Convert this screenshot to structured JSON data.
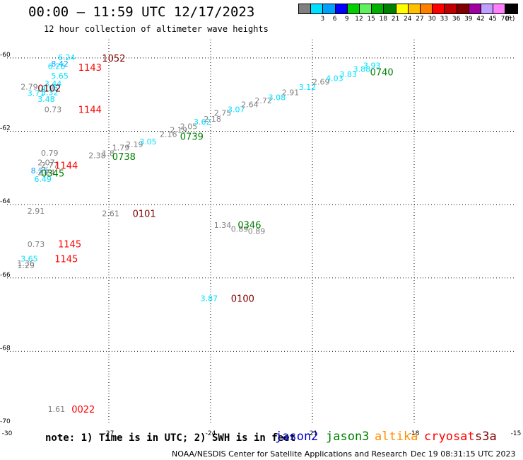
{
  "header": {
    "title": "00:00 – 11:59 UTC 12/17/2023",
    "subtitle": "12 hour collection of altimeter wave heights"
  },
  "colorbar": {
    "unit_label": "(ft)",
    "bins": [
      {
        "label": "",
        "color": "#808080"
      },
      {
        "label": "3",
        "color": "#00e0ff"
      },
      {
        "label": "6",
        "color": "#00a0ff"
      },
      {
        "label": "9",
        "color": "#0000ff"
      },
      {
        "label": "12",
        "color": "#00d000"
      },
      {
        "label": "15",
        "color": "#60f060"
      },
      {
        "label": "18",
        "color": "#00b000"
      },
      {
        "label": "21",
        "color": "#008000"
      },
      {
        "label": "24",
        "color": "#ffff00"
      },
      {
        "label": "27",
        "color": "#ffc000"
      },
      {
        "label": "30",
        "color": "#ff8000"
      },
      {
        "label": "33",
        "color": "#ff0000"
      },
      {
        "label": "36",
        "color": "#c00000"
      },
      {
        "label": "39",
        "color": "#800000"
      },
      {
        "label": "42",
        "color": "#a000a0"
      },
      {
        "label": "45",
        "color": "#c0a0ff"
      },
      {
        "label": "70",
        "color": "#ff80ff"
      },
      {
        "label": "",
        "color": "#000000"
      }
    ]
  },
  "footer": {
    "note": "note: 1) Time is in UTC; 2) SWH is in feet",
    "satellites": [
      {
        "name": "jason2",
        "color": "#0000cc"
      },
      {
        "name": "jason3",
        "color": "#008000"
      },
      {
        "name": "altika",
        "color": "#ff9000"
      },
      {
        "name": "cryosat",
        "color": "#ff0000"
      },
      {
        "name": "s3a",
        "color": "#800000"
      }
    ],
    "credit": "NOAA/NESDIS Center for Satellite Applications and Research",
    "timestamp": "Dec 19 08:31:15 UTC 2023"
  },
  "chart_data": {
    "type": "scatter",
    "xlim": [
      -30,
      -15
    ],
    "ylim": [
      -70,
      -59.5
    ],
    "xticks": [
      -30,
      -27,
      -24,
      -21,
      -18,
      -15
    ],
    "yticks": [
      -60,
      -62,
      -64,
      -66,
      -68,
      -70
    ],
    "x_tick_labels": [
      "-30",
      "-27",
      "-24",
      "-21",
      "-18",
      "-15"
    ],
    "y_tick_labels": [
      "-60",
      "-62",
      "-64",
      "-66",
      "-68",
      "-70"
    ],
    "grid": true,
    "wave_heights": [
      {
        "x": -29.6,
        "y": -60.78,
        "text": "2.79",
        "color": "#808080"
      },
      {
        "x": -29.4,
        "y": -60.96,
        "text": "3.71",
        "color": "#00e0ff"
      },
      {
        "x": -28.5,
        "y": -59.98,
        "text": "6.24",
        "color": "#00e0ff"
      },
      {
        "x": -28.7,
        "y": -60.16,
        "text": "8.42",
        "color": "#00a0ff"
      },
      {
        "x": -28.8,
        "y": -60.22,
        "text": "6.26",
        "color": "#00e0ff"
      },
      {
        "x": -28.7,
        "y": -60.48,
        "text": "5.65",
        "color": "#00e0ff"
      },
      {
        "x": -28.9,
        "y": -60.7,
        "text": "3.44",
        "color": "#00e0ff"
      },
      {
        "x": -29.0,
        "y": -60.82,
        "text": "4.96",
        "color": "#00e0ff"
      },
      {
        "x": -29.0,
        "y": -60.94,
        "text": "5.32",
        "color": "#00e0ff"
      },
      {
        "x": -29.1,
        "y": -61.12,
        "text": "3.48",
        "color": "#00e0ff"
      },
      {
        "x": -28.9,
        "y": -61.4,
        "text": "0.73",
        "color": "#808080"
      },
      {
        "x": -29.0,
        "y": -62.59,
        "text": "0.79",
        "color": "#808080"
      },
      {
        "x": -29.1,
        "y": -62.85,
        "text": "2.07",
        "color": "#808080"
      },
      {
        "x": -29.0,
        "y": -62.92,
        "text": "2.77",
        "color": "#808080"
      },
      {
        "x": -29.3,
        "y": -63.07,
        "text": "8.25",
        "color": "#00a0ff"
      },
      {
        "x": -29.1,
        "y": -63.12,
        "text": "2.24",
        "color": "#808080"
      },
      {
        "x": -29.2,
        "y": -63.3,
        "text": "6.49",
        "color": "#00e0ff"
      },
      {
        "x": -29.4,
        "y": -64.17,
        "text": "2.91",
        "color": "#808080"
      },
      {
        "x": -29.4,
        "y": -65.08,
        "text": "0.73",
        "color": "#808080"
      },
      {
        "x": -29.6,
        "y": -65.47,
        "text": "3.65",
        "color": "#00e0ff"
      },
      {
        "x": -29.7,
        "y": -65.6,
        "text": "1.36",
        "color": "#808080"
      },
      {
        "x": -29.7,
        "y": -65.66,
        "text": "1.29",
        "color": "#808080"
      },
      {
        "x": -28.8,
        "y": -69.58,
        "text": "1.61",
        "color": "#808080"
      },
      {
        "x": -27.6,
        "y": -62.66,
        "text": "2.38",
        "color": "#808080"
      },
      {
        "x": -27.2,
        "y": -62.6,
        "text": "1.8",
        "color": "#808080"
      },
      {
        "x": -26.9,
        "y": -62.44,
        "text": "1.79",
        "color": "#808080"
      },
      {
        "x": -26.5,
        "y": -62.36,
        "text": "2.19",
        "color": "#808080"
      },
      {
        "x": -26.1,
        "y": -62.28,
        "text": "3.05",
        "color": "#00e0ff"
      },
      {
        "x": -25.5,
        "y": -62.08,
        "text": "2.16",
        "color": "#808080"
      },
      {
        "x": -25.2,
        "y": -61.96,
        "text": "2.19",
        "color": "#808080"
      },
      {
        "x": -24.9,
        "y": -61.86,
        "text": "2.05",
        "color": "#808080"
      },
      {
        "x": -24.5,
        "y": -61.74,
        "text": "3.62",
        "color": "#00e0ff"
      },
      {
        "x": -24.2,
        "y": -61.66,
        "text": "2.18",
        "color": "#808080"
      },
      {
        "x": -23.9,
        "y": -61.5,
        "text": "2.75",
        "color": "#808080"
      },
      {
        "x": -23.5,
        "y": -61.4,
        "text": "3.07",
        "color": "#00e0ff"
      },
      {
        "x": -23.1,
        "y": -61.27,
        "text": "2.64",
        "color": "#808080"
      },
      {
        "x": -22.7,
        "y": -61.16,
        "text": "2.72",
        "color": "#808080"
      },
      {
        "x": -22.3,
        "y": -61.07,
        "text": "3.08",
        "color": "#00e0ff"
      },
      {
        "x": -21.9,
        "y": -60.94,
        "text": "2.91",
        "color": "#808080"
      },
      {
        "x": -21.4,
        "y": -60.79,
        "text": "3.12",
        "color": "#00e0ff"
      },
      {
        "x": -21.0,
        "y": -60.65,
        "text": "2.69",
        "color": "#808080"
      },
      {
        "x": -20.6,
        "y": -60.55,
        "text": "4.03",
        "color": "#00e0ff"
      },
      {
        "x": -20.2,
        "y": -60.45,
        "text": "3.83",
        "color": "#00e0ff"
      },
      {
        "x": -19.8,
        "y": -60.3,
        "text": "3.88",
        "color": "#00e0ff"
      },
      {
        "x": -19.5,
        "y": -60.2,
        "text": "3.93",
        "color": "#00e0ff"
      },
      {
        "x": -23.9,
        "y": -64.56,
        "text": "1.34",
        "color": "#808080"
      },
      {
        "x": -23.4,
        "y": -64.66,
        "text": "0.89",
        "color": "#808080"
      },
      {
        "x": -22.9,
        "y": -64.72,
        "text": "0.89",
        "color": "#808080"
      },
      {
        "x": -27.2,
        "y": -64.24,
        "text": "2.61",
        "color": "#808080"
      },
      {
        "x": -24.3,
        "y": -66.55,
        "text": "3.87",
        "color": "#00e0ff"
      }
    ],
    "pass_times": [
      {
        "x": -27.2,
        "y": -60.0,
        "text": "1052",
        "color": "#800000"
      },
      {
        "x": -27.9,
        "y": -60.25,
        "text": "1143",
        "color": "#ff0000"
      },
      {
        "x": -29.1,
        "y": -60.82,
        "text": "0102",
        "color": "#800000"
      },
      {
        "x": -27.9,
        "y": -61.4,
        "text": "1144",
        "color": "#ff0000"
      },
      {
        "x": -28.6,
        "y": -62.93,
        "text": "1144",
        "color": "#ff0000"
      },
      {
        "x": -29.0,
        "y": -63.14,
        "text": "0345",
        "color": "#008000"
      },
      {
        "x": -28.5,
        "y": -65.07,
        "text": "1145",
        "color": "#ff0000"
      },
      {
        "x": -28.6,
        "y": -65.47,
        "text": "1145",
        "color": "#ff0000"
      },
      {
        "x": -28.1,
        "y": -69.58,
        "text": "0022",
        "color": "#ff0000"
      },
      {
        "x": -26.9,
        "y": -62.68,
        "text": "0738",
        "color": "#008000"
      },
      {
        "x": -24.9,
        "y": -62.13,
        "text": "0739",
        "color": "#008000"
      },
      {
        "x": -19.3,
        "y": -60.38,
        "text": "0740",
        "color": "#008000"
      },
      {
        "x": -26.3,
        "y": -64.24,
        "text": "0101",
        "color": "#800000"
      },
      {
        "x": -23.2,
        "y": -64.55,
        "text": "0346",
        "color": "#008000"
      },
      {
        "x": -23.4,
        "y": -66.55,
        "text": "0100",
        "color": "#800000"
      }
    ]
  }
}
